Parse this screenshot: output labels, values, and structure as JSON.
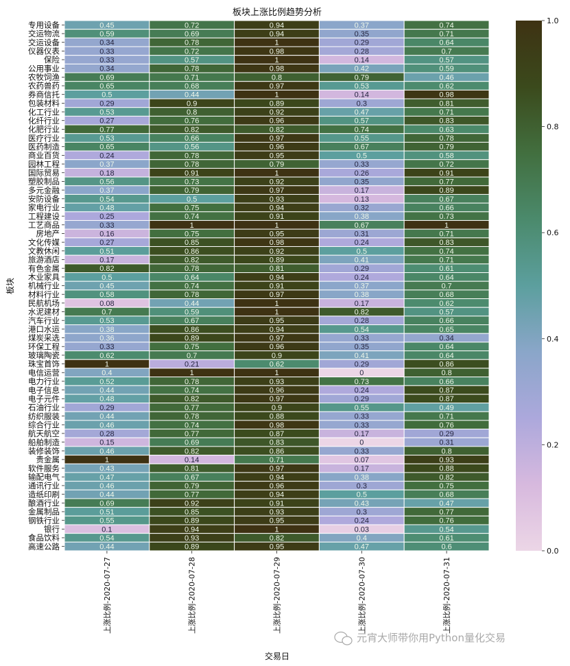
{
  "chart_data": {
    "type": "heatmap",
    "title": "板块上涨比例趋势分析",
    "xlabel": "交易日",
    "ylabel": "板块",
    "x_categories": [
      "上涨比例-2020-07-27",
      "上涨比例-2020-07-28",
      "上涨比例-2020-07-29",
      "上涨比例-2020-07-30",
      "上涨比例-2020-07-31"
    ],
    "y_categories": [
      "专用设备",
      "交运物流",
      "交运设备",
      "仪器仪表",
      "保险",
      "公用事业",
      "农牧饲渔",
      "农药兽药",
      "券商信托",
      "包装材料",
      "化工行业",
      "化纤行业",
      "化肥行业",
      "医疗行业",
      "医药制造",
      "商业百货",
      "园林工程",
      "国际贸易",
      "塑胶制品",
      "多元金融",
      "安防设备",
      "家电行业",
      "工程建设",
      "工艺商品",
      "房地产",
      "文化传媒",
      "文教休闲",
      "旅游酒店",
      "有色金属",
      "木业家具",
      "机械行业",
      "材料行业",
      "民航机场",
      "水泥建材",
      "汽车行业",
      "港口水运",
      "煤炭采选",
      "环保工程",
      "玻璃陶瓷",
      "珠宝首饰",
      "电信运营",
      "电力行业",
      "电子信息",
      "电子元件",
      "石油行业",
      "纺织服装",
      "综合行业",
      "航天航空",
      "船舶制造",
      "装修装饰",
      "贵金属",
      "软件服务",
      "输配电气",
      "通讯行业",
      "造纸印刷",
      "酿酒行业",
      "金属制品",
      "钢铁行业",
      "银行",
      "食品饮料",
      "高速公路"
    ],
    "values": [
      [
        0.45,
        0.72,
        0.94,
        0.37,
        0.74
      ],
      [
        0.59,
        0.69,
        0.94,
        0.35,
        0.71
      ],
      [
        0.34,
        0.78,
        1,
        0.29,
        0.64
      ],
      [
        0.33,
        0.72,
        0.98,
        0.28,
        0.7
      ],
      [
        0.33,
        0.57,
        1,
        0.14,
        0.57
      ],
      [
        0.34,
        0.78,
        0.98,
        0.42,
        0.59
      ],
      [
        0.69,
        0.71,
        0.8,
        0.79,
        0.46
      ],
      [
        0.65,
        0.68,
        0.97,
        0.53,
        0.62
      ],
      [
        0.5,
        0.44,
        1,
        0.14,
        0.98
      ],
      [
        0.29,
        0.9,
        0.89,
        0.3,
        0.81
      ],
      [
        0.53,
        0.8,
        0.92,
        0.47,
        0.71
      ],
      [
        0.27,
        0.76,
        0.96,
        0.57,
        0.83
      ],
      [
        0.77,
        0.82,
        0.82,
        0.74,
        0.63
      ],
      [
        0.53,
        0.66,
        0.97,
        0.55,
        0.78
      ],
      [
        0.65,
        0.56,
        0.96,
        0.67,
        0.79
      ],
      [
        0.24,
        0.78,
        0.95,
        0.5,
        0.58
      ],
      [
        0.37,
        0.78,
        0.79,
        0.33,
        0.72
      ],
      [
        0.18,
        0.91,
        1,
        0.26,
        0.91
      ],
      [
        0.56,
        0.73,
        0.92,
        0.35,
        0.77
      ],
      [
        0.37,
        0.79,
        0.97,
        0.17,
        0.89
      ],
      [
        0.54,
        0.5,
        0.93,
        0.13,
        0.67
      ],
      [
        0.48,
        0.75,
        0.94,
        0.32,
        0.66
      ],
      [
        0.25,
        0.74,
        0.91,
        0.38,
        0.73
      ],
      [
        0.33,
        1,
        1,
        0.67,
        1
      ],
      [
        0.16,
        0.75,
        0.95,
        0.31,
        0.71
      ],
      [
        0.27,
        0.85,
        0.98,
        0.24,
        0.83
      ],
      [
        0.51,
        0.86,
        0.92,
        0.5,
        0.74
      ],
      [
        0.17,
        0.82,
        0.89,
        0.41,
        0.71
      ],
      [
        0.82,
        0.78,
        0.81,
        0.29,
        0.61
      ],
      [
        0.5,
        0.64,
        0.94,
        0.24,
        0.64
      ],
      [
        0.45,
        0.74,
        0.91,
        0.37,
        0.7
      ],
      [
        0.58,
        0.78,
        0.97,
        0.38,
        0.68
      ],
      [
        0.08,
        0.44,
        1,
        0.17,
        0.62
      ],
      [
        0.7,
        0.59,
        1,
        0.82,
        0.57
      ],
      [
        0.53,
        0.67,
        0.95,
        0.28,
        0.66
      ],
      [
        0.38,
        0.86,
        0.94,
        0.54,
        0.65
      ],
      [
        0.36,
        0.89,
        0.97,
        0.33,
        0.34
      ],
      [
        0.33,
        0.75,
        0.96,
        0.35,
        0.64
      ],
      [
        0.62,
        0.7,
        0.9,
        0.41,
        0.64
      ],
      [
        1,
        0.21,
        0.62,
        0.29,
        0.86
      ],
      [
        0.4,
        1,
        1,
        0,
        0.8
      ],
      [
        0.52,
        0.78,
        0.93,
        0.73,
        0.66
      ],
      [
        0.44,
        0.74,
        0.96,
        0.24,
        0.87
      ],
      [
        0.48,
        0.82,
        0.97,
        0.29,
        0.87
      ],
      [
        0.29,
        0.77,
        0.9,
        0.55,
        0.49
      ],
      [
        0.44,
        0.78,
        0.88,
        0.33,
        0.71
      ],
      [
        0.46,
        0.74,
        0.98,
        0.33,
        0.76
      ],
      [
        0.28,
        0.77,
        0.87,
        0.17,
        0.29
      ],
      [
        0.15,
        0.69,
        0.83,
        0,
        0.31
      ],
      [
        0.46,
        0.82,
        0.86,
        0.33,
        0.8
      ],
      [
        1,
        0.14,
        0.71,
        0.07,
        0.93
      ],
      [
        0.43,
        0.81,
        0.97,
        0.17,
        0.88
      ],
      [
        0.47,
        0.67,
        0.94,
        0.38,
        0.82
      ],
      [
        0.46,
        0.79,
        0.96,
        0.3,
        0.75
      ],
      [
        0.44,
        0.77,
        0.94,
        0.5,
        0.68
      ],
      [
        0.69,
        0.92,
        0.91,
        0.43,
        0.47
      ],
      [
        0.51,
        0.85,
        0.93,
        0.3,
        0.77
      ],
      [
        0.55,
        0.89,
        0.95,
        0.24,
        0.76
      ],
      [
        0.1,
        0.94,
        1,
        0.03,
        0.54
      ],
      [
        0.54,
        0.93,
        0.82,
        0.4,
        0.61
      ],
      [
        0.44,
        0.89,
        0.95,
        0.47,
        0.6
      ]
    ],
    "vmin": 0,
    "vmax": 1,
    "colorbar_ticks": [
      "0.0",
      "0.2",
      "0.4",
      "0.6",
      "0.8",
      "1.0"
    ],
    "colormap": "cubehelix_r (light pink → lavender → teal → green → dark olive)",
    "colormap_stops": [
      "#ecd6e6",
      "#d7b9de",
      "#aca8dc",
      "#8aa6c9",
      "#5c9f9e",
      "#4b8a6c",
      "#426f3f",
      "#3b4a1c",
      "#3e3213"
    ],
    "annotations": true,
    "grid_line_color": "#ffffff"
  },
  "watermark": "元宵大师带你用Python量化交易"
}
